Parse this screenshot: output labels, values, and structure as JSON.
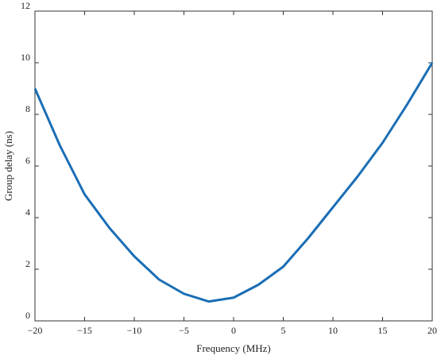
{
  "chart_data": {
    "type": "line",
    "x_label": "Frequency (MHz)",
    "y_label": "Group delay (ns)",
    "x": [
      -20,
      -17.5,
      -15,
      -12.5,
      -10,
      -7.5,
      -5,
      -2.5,
      0,
      2.5,
      5,
      7.5,
      10,
      12.5,
      15,
      17.5,
      20
    ],
    "series": [
      {
        "color": "#1a6eb5",
        "values": [
          9.0,
          6.8,
          4.9,
          3.6,
          2.5,
          1.6,
          1.05,
          0.75,
          0.9,
          1.4,
          2.1,
          3.2,
          4.4,
          5.6,
          6.9,
          8.4,
          10.0
        ]
      }
    ],
    "xlim": [
      -20,
      20
    ],
    "xticks": [
      {
        "value": -20,
        "label": "−20"
      },
      {
        "value": -15,
        "label": "−15"
      },
      {
        "value": -10,
        "label": "−10"
      },
      {
        "value": -5,
        "label": "−5"
      },
      0,
      5,
      10,
      15,
      20
    ],
    "ylim": [
      0,
      12
    ],
    "yticks": [
      0,
      2,
      4,
      6,
      8,
      10,
      12
    ],
    "grid": false
  }
}
